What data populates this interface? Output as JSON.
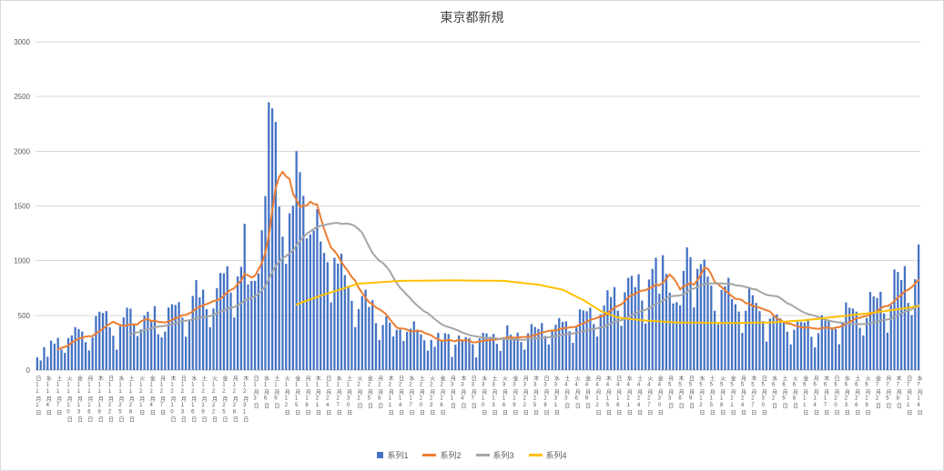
{
  "chart": {
    "colors": {
      "background": "#ffffff",
      "chart_border": "#d9d9d9",
      "gridline": "#d9d9d9",
      "axis_line": "#bfbfbf",
      "axis_text": "#595959",
      "title_text": "#404040"
    },
    "y_axis": {
      "min": 0,
      "max": 3000,
      "step": 500,
      "tick_labels": [
        "0",
        "500",
        "1000",
        "1500",
        "2000",
        "2500",
        "3000"
      ]
    }
  },
  "chart_data": {
    "type": "bar",
    "title": "東京都新規",
    "xlabel": "",
    "ylabel": "",
    "ylim": [
      0,
      3000
    ],
    "grid": true,
    "legend_position": "bottom",
    "x_start": "11月1日",
    "x_end": "7月14日",
    "x_tick_interval_days": 3,
    "x_tick_labels": [
      "日11月1日",
      "水11月4日",
      "土11月7日",
      "火11月10日",
      "金11月13日",
      "月11月16日",
      "木11月19日",
      "日11月22日",
      "水11月25日",
      "土11月28日",
      "火12月1日",
      "金12月4日",
      "月12月7日",
      "木12月10日",
      "日12月13日",
      "水12月16日",
      "土12月19日",
      "火12月22日",
      "金12月25日",
      "月12月28日",
      "木12月31日",
      "日1月3日",
      "水1月6日",
      "土1月9日",
      "火1月12日",
      "金1月15日",
      "月1月18日",
      "木1月21日",
      "日1月24日",
      "水1月27日",
      "土1月30日",
      "火2月2日",
      "金2月5日",
      "月2月8日",
      "木2月11日",
      "日2月14日",
      "水2月17日",
      "土2月20日",
      "火2月23日",
      "金2月26日",
      "月3月1日",
      "木3月4日",
      "日3月7日",
      "水3月10日",
      "土3月13日",
      "火3月16日",
      "金3月19日",
      "月3月22日",
      "木3月25日",
      "日3月28日",
      "水3月31日",
      "土4月3日",
      "火4月6日",
      "金4月9日",
      "月4月12日",
      "木4月15日",
      "日4月18日",
      "水4月21日",
      "土4月24日",
      "火4月27日",
      "金4月30日",
      "月5月3日",
      "木5月6日",
      "日5月9日",
      "水5月12日",
      "土5月15日",
      "火5月18日",
      "金5月21日",
      "月5月24日",
      "木5月27日",
      "日5月30日",
      "水6月2日",
      "土6月5日",
      "火6月8日",
      "金6月11日",
      "月6月14日",
      "木6月17日",
      "日6月20日",
      "水6月23日",
      "土6月26日",
      "火6月29日",
      "金7月2日",
      "月7月5日",
      "木7月8日",
      "日7月11日",
      "水7月14日"
    ],
    "series": [
      {
        "name": "系列1",
        "type": "bar",
        "color": "#4472C4",
        "values": [
          116,
          87,
          209,
          122,
          269,
          242,
          294,
          189,
          157,
          293,
          317,
          393,
          374,
          352,
          255,
          180,
          298,
          493,
          534,
          522,
          539,
          391,
          314,
          186,
          401,
          481,
          570,
          561,
          418,
          311,
          372,
          500,
          533,
          449,
          584,
          327,
          299,
          352,
          572,
          602,
          595,
          621,
          480,
          305,
          460,
          678,
          822,
          664,
          736,
          556,
          392,
          563,
          748,
          888,
          884,
          949,
          708,
          481,
          856,
          944,
          1337,
          783,
          814,
          816,
          884,
          1278,
          1591,
          2447,
          2392,
          2268,
          1494,
          1219,
          970,
          1433,
          1502,
          2001,
          1809,
          1592,
          1204,
          1240,
          1274,
          1471,
          1175,
          1070,
          986,
          618,
          1026,
          973,
          1064,
          868,
          769,
          633,
          393,
          556,
          676,
          734,
          577,
          639,
          429,
          276,
          412,
          491,
          434,
          307,
          369,
          371,
          266,
          350,
          378,
          445,
          353,
          327,
          272,
          178,
          275,
          213,
          340,
          270,
          337,
          329,
          121,
          232,
          316,
          279,
          301,
          293,
          237,
          116,
          290,
          340,
          335,
          304,
          330,
          239,
          175,
          300,
          409,
          323,
          303,
          342,
          256,
          187,
          337,
          420,
          394,
          376,
          430,
          313,
          234,
          364,
          414,
          475,
          440,
          446,
          355,
          249,
          399,
          555,
          545,
          537,
          570,
          421,
          306,
          510,
          591,
          729,
          667,
          759,
          543,
          405,
          711,
          843,
          861,
          759,
          876,
          635,
          425,
          828,
          925,
          1027,
          698,
          1050,
          879,
          708,
          609,
          621,
          591,
          907,
          1121,
          1032,
          573,
          925,
          969,
          1010,
          854,
          772,
          542,
          419,
          732,
          766,
          843,
          649,
          602,
          535,
          340,
          542,
          743,
          684,
          614,
          539,
          448,
          260,
          471,
          487,
          508,
          472,
          436,
          351,
          235,
          369,
          440,
          439,
          435,
          467,
          304,
          209,
          337,
          501,
          452,
          453,
          388,
          376,
          236,
          435,
          619,
          570,
          562,
          534,
          386,
          317,
          476,
          714,
          673,
          660,
          716,
          518,
          342,
          593,
          920,
          896,
          822,
          950,
          614,
          502,
          830,
          1149
        ]
      },
      {
        "name": "系列2",
        "type": "line",
        "color": "#ED7D31",
        "derived_from": "系列1",
        "window": 7
      },
      {
        "name": "系列3",
        "type": "line",
        "color": "#A5A5A5",
        "derived_from": "系列1",
        "window": 28
      },
      {
        "name": "系列4",
        "type": "line",
        "color": "#FFC000",
        "points": [
          [
            75,
            600
          ],
          [
            82,
            680
          ],
          [
            93,
            790
          ],
          [
            105,
            815
          ],
          [
            120,
            820
          ],
          [
            135,
            815
          ],
          [
            145,
            780
          ],
          [
            152,
            735
          ],
          [
            158,
            640
          ],
          [
            163,
            540
          ],
          [
            168,
            480
          ],
          [
            175,
            455
          ],
          [
            185,
            435
          ],
          [
            200,
            430
          ],
          [
            212,
            435
          ],
          [
            222,
            455
          ],
          [
            232,
            490
          ],
          [
            242,
            525
          ],
          [
            250,
            560
          ],
          [
            255,
            585
          ]
        ]
      }
    ]
  }
}
